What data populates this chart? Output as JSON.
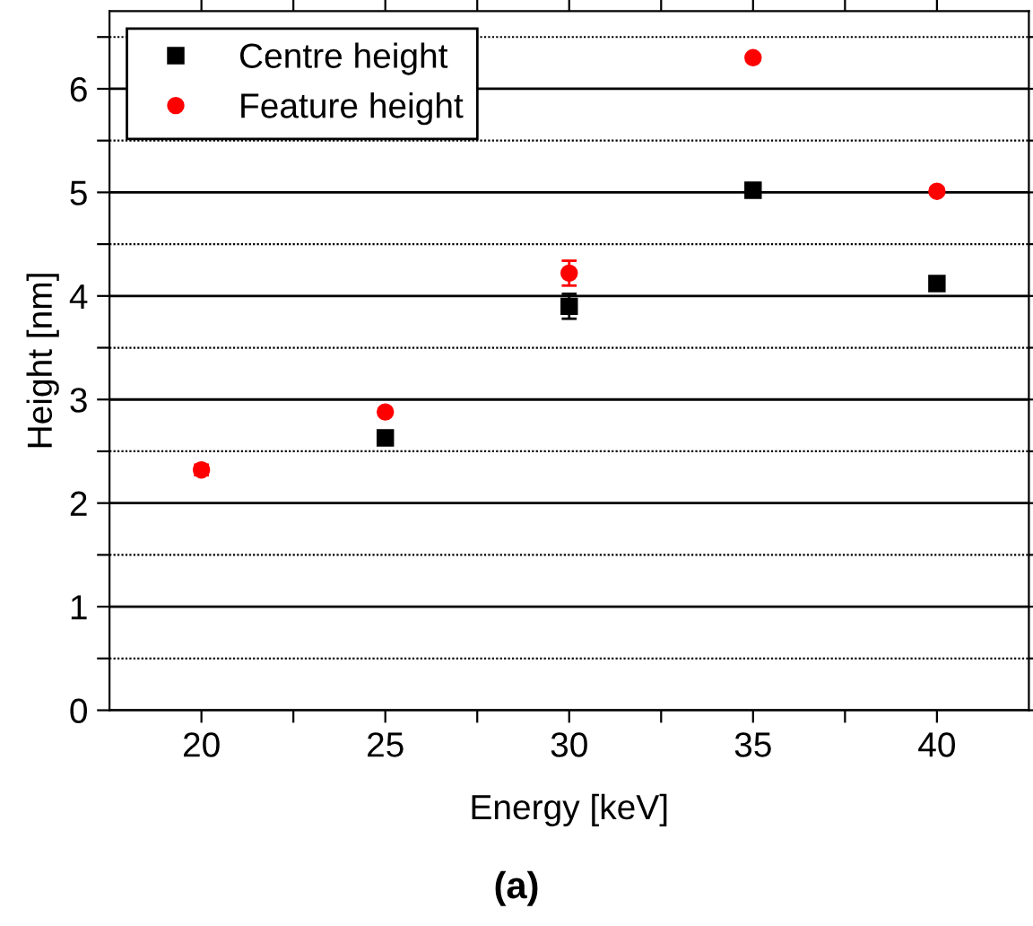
{
  "chart_data": {
    "type": "scatter",
    "xlabel": "Energy [keV]",
    "ylabel": "Height [nm]",
    "annotations": [
      "(a)"
    ],
    "x": [
      20,
      25,
      30,
      35,
      40
    ],
    "series": [
      {
        "name": "Centre height",
        "color": "#000000",
        "marker": "square",
        "values": [
          null,
          2.63,
          3.9,
          5.02,
          4.12
        ],
        "errors": [
          null,
          0.04,
          0.12,
          0.04,
          0.04
        ]
      },
      {
        "name": "Feature height",
        "color": "#ff0000",
        "marker": "circle",
        "values": [
          2.32,
          2.88,
          4.22,
          6.3,
          5.01
        ],
        "errors": [
          0.05,
          0.03,
          0.12,
          0.03,
          0.03
        ]
      }
    ],
    "xlim": [
      17.5,
      42.5
    ],
    "xticks": [
      20,
      {
        "value": 22.5,
        "label": null
      },
      25,
      {
        "value": 27.5,
        "label": null
      },
      30,
      {
        "value": 32.5,
        "label": null
      },
      35,
      {
        "value": 37.5,
        "label": null
      },
      40
    ],
    "ylim": [
      0,
      6.75
    ],
    "yticks": [
      0,
      {
        "value": 0.5,
        "label": null
      },
      1,
      {
        "value": 1.5,
        "label": null
      },
      2,
      {
        "value": 2.5,
        "label": null
      },
      3,
      {
        "value": 3.5,
        "label": null
      },
      4,
      {
        "value": 4.5,
        "label": null
      },
      5,
      {
        "value": 5.5,
        "label": null
      },
      6,
      {
        "value": 6.5,
        "label": null
      }
    ],
    "grid": "y",
    "legend": "top left"
  }
}
